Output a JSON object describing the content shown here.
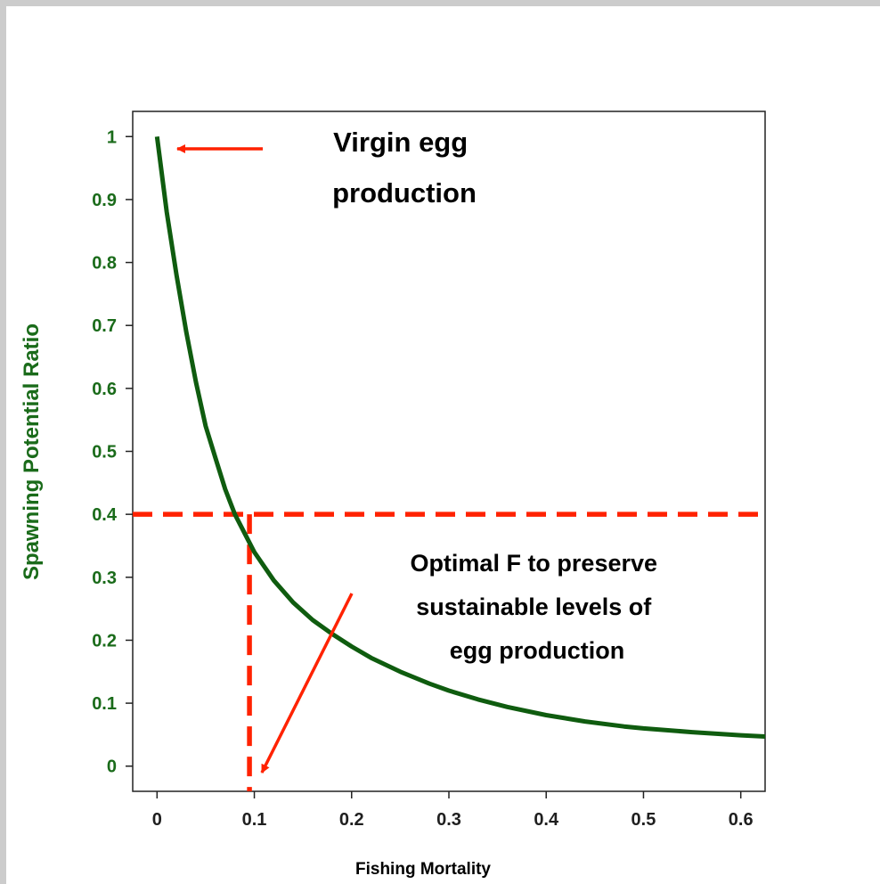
{
  "chart_data": {
    "type": "line",
    "xlabel": "Fishing Mortality",
    "ylabel": "Spawning Potential Ratio",
    "xlim": [
      -0.025,
      0.625
    ],
    "ylim": [
      -0.04,
      1.04
    ],
    "x_ticks": [
      "0",
      "0.1",
      "0.2",
      "0.3",
      "0.4",
      "0.5",
      "0.6"
    ],
    "y_ticks": [
      "0",
      "0.1",
      "0.2",
      "0.3",
      "0.4",
      "0.5",
      "0.6",
      "0.7",
      "0.8",
      "0.9",
      "1"
    ],
    "series": [
      {
        "color": "#0f5c0f",
        "x": [
          0,
          0.01,
          0.02,
          0.03,
          0.04,
          0.05,
          0.06,
          0.07,
          0.08,
          0.09,
          0.1,
          0.12,
          0.14,
          0.16,
          0.18,
          0.2,
          0.22,
          0.25,
          0.28,
          0.3,
          0.33,
          0.36,
          0.4,
          0.44,
          0.48,
          0.5,
          0.55,
          0.6,
          0.625
        ],
        "y": [
          1.0,
          0.88,
          0.78,
          0.69,
          0.61,
          0.54,
          0.49,
          0.44,
          0.4,
          0.37,
          0.34,
          0.295,
          0.26,
          0.232,
          0.21,
          0.19,
          0.172,
          0.15,
          0.131,
          0.12,
          0.106,
          0.094,
          0.081,
          0.071,
          0.063,
          0.06,
          0.054,
          0.049,
          0.047
        ]
      }
    ],
    "reference_lines": {
      "horizontal": {
        "y": 0.4,
        "color": "#ff2200",
        "style": "dashed"
      },
      "vertical": {
        "x": 0.095,
        "y_top": 0.4,
        "color": "#ff2200",
        "style": "dashed"
      }
    },
    "annotations": [
      {
        "lines": [
          "Virgin egg",
          "production"
        ],
        "points_to": "curve start (F = 0, SPR = 1)"
      },
      {
        "lines": [
          "Optimal F to preserve",
          "sustainable levels of",
          "egg production"
        ],
        "points_to": "F at SPR = 0.4"
      }
    ],
    "colors": {
      "curve": "#0f5c0f",
      "reference": "#ff2200",
      "arrow": "#ff2200",
      "ylabel": "#1a6b1a"
    },
    "grid": false,
    "legend": "none"
  }
}
